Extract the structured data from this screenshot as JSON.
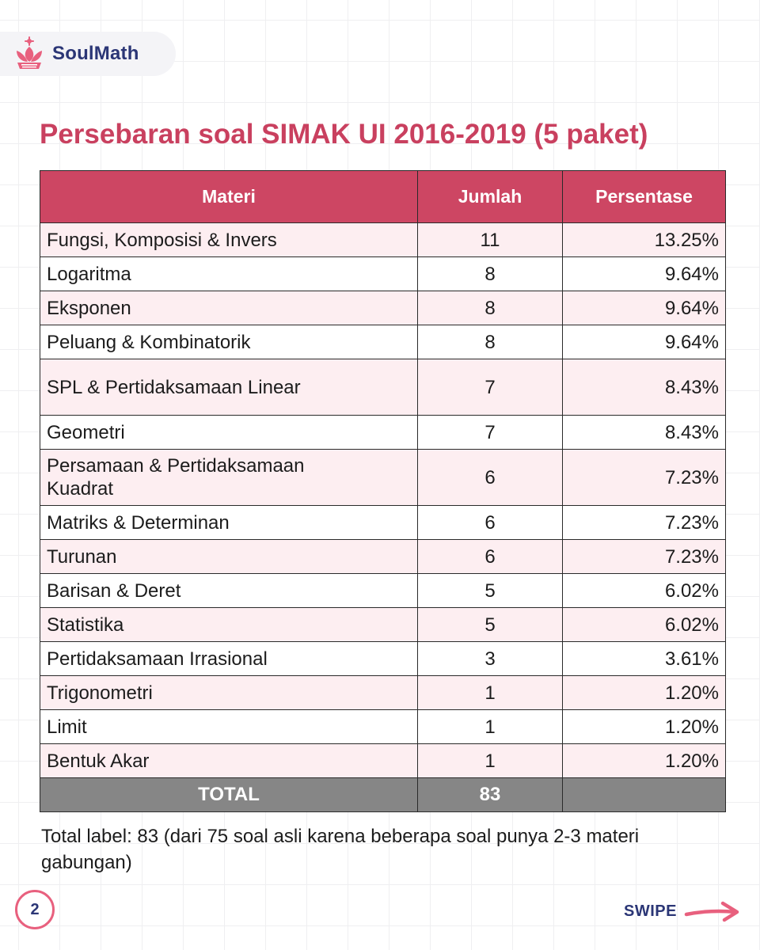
{
  "brand": {
    "name": "SoulMath",
    "logo_icon": "lotus-icon"
  },
  "title": "Persebaran soal SIMAK UI 2016-2019 (5 paket)",
  "table": {
    "headers": [
      "Materi",
      "Jumlah",
      "Persentase"
    ],
    "rows": [
      {
        "materi": "Fungsi, Komposisi & Invers",
        "jumlah": "11",
        "persentase": "13.25%"
      },
      {
        "materi": "Logaritma",
        "jumlah": "8",
        "persentase": "9.64%"
      },
      {
        "materi": "Eksponen",
        "jumlah": "8",
        "persentase": "9.64%"
      },
      {
        "materi": "Peluang & Kombinatorik",
        "jumlah": "8",
        "persentase": "9.64%"
      },
      {
        "materi": "SPL & Pertidaksamaan Linear",
        "jumlah": "7",
        "persentase": "8.43%"
      },
      {
        "materi": "Geometri",
        "jumlah": "7",
        "persentase": "8.43%"
      },
      {
        "materi": "Persamaan & Pertidaksamaan Kuadrat",
        "jumlah": "6",
        "persentase": "7.23%"
      },
      {
        "materi": "Matriks & Determinan",
        "jumlah": "6",
        "persentase": "7.23%"
      },
      {
        "materi": "Turunan",
        "jumlah": "6",
        "persentase": "7.23%"
      },
      {
        "materi": "Barisan & Deret",
        "jumlah": "5",
        "persentase": "6.02%"
      },
      {
        "materi": "Statistika",
        "jumlah": "5",
        "persentase": "6.02%"
      },
      {
        "materi": "Pertidaksamaan Irrasional",
        "jumlah": "3",
        "persentase": "3.61%"
      },
      {
        "materi": "Trigonometri",
        "jumlah": "1",
        "persentase": "1.20%"
      },
      {
        "materi": "Limit",
        "jumlah": "1",
        "persentase": "1.20%"
      },
      {
        "materi": "Bentuk Akar",
        "jumlah": "1",
        "persentase": "1.20%"
      }
    ],
    "total": {
      "label": "TOTAL",
      "jumlah": "83",
      "persentase": ""
    }
  },
  "note": "Total label: 83 (dari 75 soal asli karena beberapa soal punya 2-3 materi gabungan)",
  "footer": {
    "page_number": "2",
    "swipe_label": "SWIPE",
    "swipe_icon": "arrow-right-icon"
  },
  "colors": {
    "accent": "#cd4663",
    "navy": "#2b3676",
    "total_row": "#868686",
    "row_tint": "#fdeef1"
  }
}
